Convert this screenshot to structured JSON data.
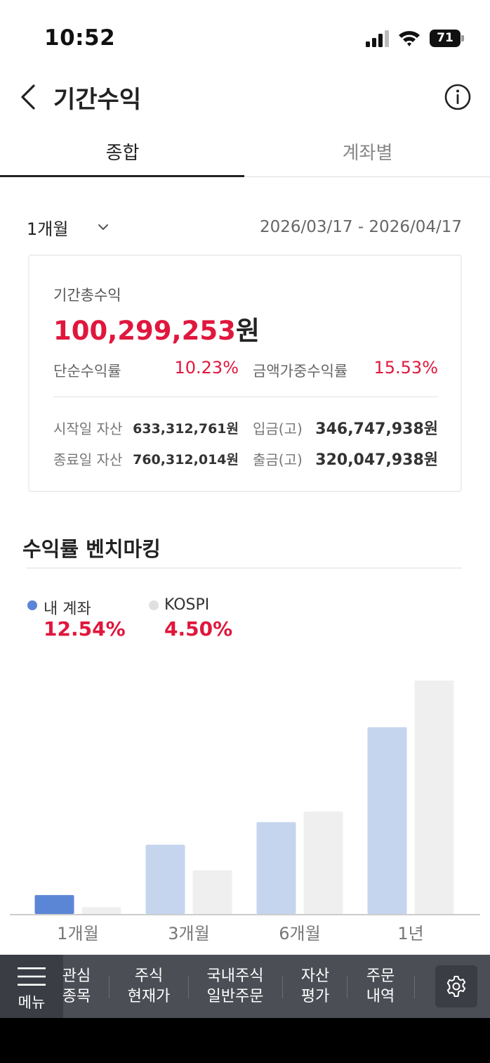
{
  "status_bar": {
    "time": "10:52",
    "battery": "71"
  },
  "header": {
    "title": "기간수익"
  },
  "tabs": [
    {
      "label": "종합",
      "active": true
    },
    {
      "label": "계좌별",
      "active": false
    }
  ],
  "period": {
    "selected": "1개월",
    "date_range": "2026/03/17 - 2026/04/17"
  },
  "summary": {
    "total_label": "기간총수익",
    "total_value": "100,299,253",
    "total_unit": "원",
    "simple_rate_label": "단순수익률",
    "simple_rate_value": "10.23%",
    "weighted_rate_label": "금액가중수익률",
    "weighted_rate_value": "15.53%",
    "start_asset_label": "시작일 자산",
    "start_asset_value": "633,312,761원",
    "end_asset_label": "종료일 자산",
    "end_asset_value": "760,312,014원",
    "deposit_label": "입금(고)",
    "deposit_value": "346,747,938원",
    "withdraw_label": "출금(고)",
    "withdraw_value": "320,047,938원"
  },
  "benchmark": {
    "title": "수익률 벤치마킹",
    "legend": [
      {
        "name": "내 계좌",
        "value": "12.54%",
        "color": "#5b86d6"
      },
      {
        "name": "KOSPI",
        "value": "4.50%",
        "color": "#e0e0e0"
      }
    ]
  },
  "chart_data": {
    "type": "bar",
    "categories": [
      "1개월",
      "3개월",
      "6개월",
      "1년"
    ],
    "series": [
      {
        "name": "내 계좌",
        "values": [
          12.54,
          46,
          61,
          124
        ],
        "colors": [
          "#5b86d6",
          "#c5d5ee",
          "#c5d5ee",
          "#c5d5ee"
        ]
      },
      {
        "name": "KOSPI",
        "values": [
          4.5,
          29,
          68,
          155
        ],
        "colors": [
          "#efefef",
          "#efefef",
          "#efefef",
          "#efefef"
        ]
      }
    ],
    "ylim": [
      0,
      155
    ]
  },
  "bottom_nav": {
    "menu_label": "메뉴",
    "items": [
      {
        "label": "관심\n종목"
      },
      {
        "label": "주식\n현재가"
      },
      {
        "label": "국내주식\n일반주문"
      },
      {
        "label": "자산\n평가"
      },
      {
        "label": "주문\n내역"
      }
    ]
  }
}
